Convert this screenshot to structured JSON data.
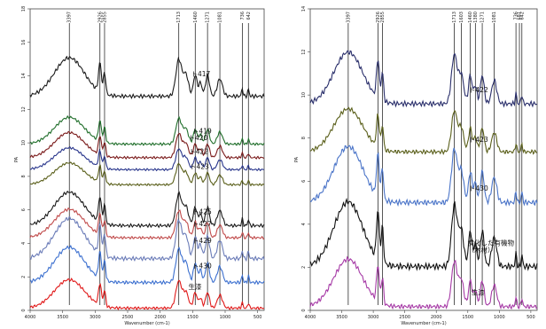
{
  "chart_data": [
    {
      "type": "line",
      "xlabel": "Wavenumber (cm-1)",
      "ylabel": "PA",
      "xlim": [
        4000,
        400
      ],
      "ylim": [
        0,
        18
      ],
      "x_ticks": [
        "4000",
        "3500",
        "3000",
        "2500",
        "2000",
        "1500",
        "1000",
        "500"
      ],
      "y_ticks": [
        "0",
        "2",
        "4",
        "6",
        "8",
        "10",
        "12",
        "14",
        "16",
        "18"
      ],
      "peak_markers": [
        "3397",
        "2926",
        "2855",
        "1713",
        "1460",
        "1271",
        "1081",
        "736",
        "642"
      ],
      "series": [
        {
          "name": "ト417",
          "color": "#1a1a1a",
          "baseline": 12.6,
          "scale": 2.3
        },
        {
          "name": "ト419",
          "color": "#1f6e2a",
          "baseline": 9.8,
          "scale": 1.6
        },
        {
          "name": "ト420",
          "color": "#7a1a1a",
          "baseline": 9.0,
          "scale": 1.5
        },
        {
          "name": "ト422",
          "color": "#27348b",
          "baseline": 8.3,
          "scale": 1.3
        },
        {
          "name": "ト423",
          "color": "#5a5f1a",
          "baseline": 7.4,
          "scale": 1.3
        },
        {
          "name": "ト425",
          "color": "#1a1a1a",
          "baseline": 4.9,
          "scale": 2.0
        },
        {
          "name": "ト427",
          "color": "#c04a4a",
          "baseline": 4.2,
          "scale": 1.7
        },
        {
          "name": "ト429",
          "color": "#6b7cb8",
          "baseline": 2.9,
          "scale": 2.4
        },
        {
          "name": "ト430",
          "color": "#3b6fcf",
          "baseline": 1.5,
          "scale": 2.1
        },
        {
          "name": "生漆",
          "color": "#e01818",
          "baseline": 0.0,
          "scale": 1.7
        }
      ]
    },
    {
      "type": "line",
      "xlabel": "Wavenumber (cm-1)",
      "ylabel": "PA",
      "xlim": [
        4000,
        400
      ],
      "ylim": [
        0,
        14
      ],
      "x_ticks": [
        "4000",
        "3500",
        "3000",
        "2500",
        "2000",
        "1500",
        "1000",
        "500"
      ],
      "y_ticks": [
        "0",
        "2",
        "4",
        "6",
        "8",
        "10",
        "12",
        "14"
      ],
      "peak_markers": [
        "3397",
        "2926",
        "2855",
        "1713",
        "1603",
        "1460",
        "1380",
        "1271",
        "1081",
        "736",
        "681",
        "642"
      ],
      "series": [
        {
          "name": "ト422",
          "color": "#2a2f6b",
          "baseline": 9.4,
          "scale": 2.4
        },
        {
          "name": "ト423",
          "color": "#5a5f1a",
          "baseline": 7.2,
          "scale": 2.0
        },
        {
          "name": "ト430",
          "color": "#4a74c8",
          "baseline": 4.8,
          "scale": 2.6
        },
        {
          "name": "炭化した有機物\n（木材）",
          "color": "#111111",
          "baseline": 1.8,
          "scale": 3.0
        },
        {
          "name": "生漆",
          "color": "#a63aa6",
          "baseline": 0.0,
          "scale": 2.2
        }
      ]
    }
  ]
}
